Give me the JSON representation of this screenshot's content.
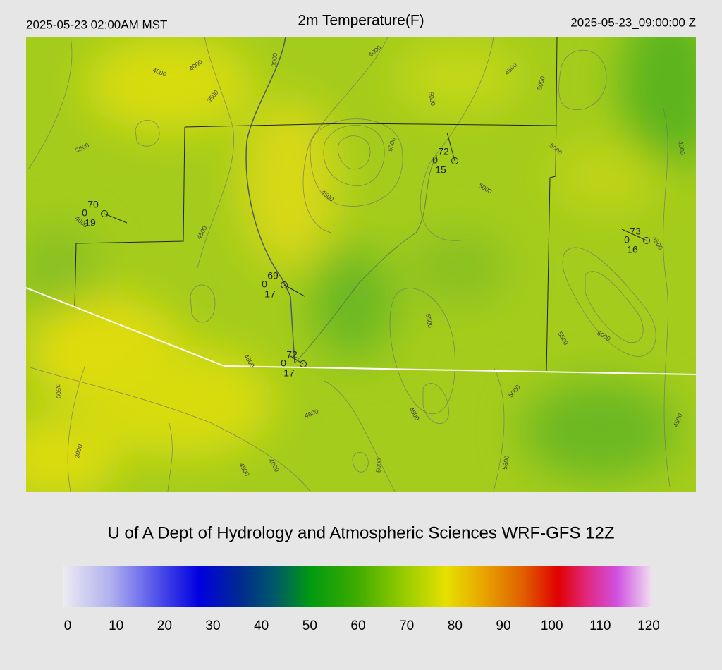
{
  "header": {
    "local_time": "2025-05-23 02:00AM MST",
    "title": "2m Temperature(F)",
    "valid_time": "2025-05-23_09:00:00 Z"
  },
  "map": {
    "contour_labels": [
      4000,
      4000,
      3500,
      3000,
      4000,
      4500,
      5000,
      5000,
      5500,
      5000,
      4000,
      3500,
      4500,
      5000,
      4000,
      4500,
      4500,
      5500,
      5500,
      6000,
      4500,
      3500,
      5000,
      4500,
      4500,
      4500,
      3000,
      4000,
      4500,
      5000,
      5500
    ],
    "stations": [
      {
        "temperature": 70,
        "left": 0,
        "bottom": 19
      },
      {
        "temperature": 72,
        "left": 0,
        "bottom": 15
      },
      {
        "temperature": 73,
        "left": 0,
        "bottom": 16
      },
      {
        "temperature": 69,
        "left": 0,
        "bottom": 17
      },
      {
        "temperature": 72,
        "left": 0,
        "bottom": 17
      }
    ]
  },
  "footer": {
    "credit": "U of A Dept of Hydrology and Atmospheric Sciences WRF-GFS 12Z"
  },
  "colorbar": {
    "lim": [
      0,
      120
    ],
    "ticks": [
      0,
      10,
      20,
      30,
      40,
      50,
      60,
      70,
      80,
      90,
      100,
      110,
      120
    ]
  }
}
